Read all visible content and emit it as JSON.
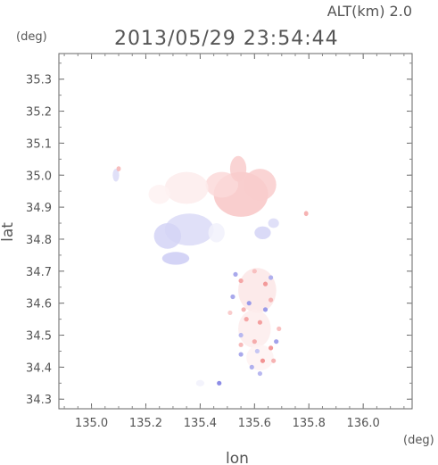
{
  "header": {
    "altitude_label": "ALT(km)  2.0",
    "timestamp": "2013/05/29 23:54:44"
  },
  "chart_data": {
    "type": "heatmap",
    "title": "2013/05/29 23:54:44",
    "xlabel": "lon",
    "ylabel": "lat",
    "xunit": "(deg)",
    "yunit": "(deg)",
    "xlim": [
      134.88,
      136.18
    ],
    "ylim": [
      34.27,
      35.38
    ],
    "x_ticks": [
      135.0,
      135.2,
      135.4,
      135.6,
      135.8,
      136.0
    ],
    "x_tick_labels": [
      "135.0",
      "135.2",
      "135.4",
      "135.6",
      "135.8",
      "136.0"
    ],
    "y_ticks": [
      34.3,
      34.4,
      34.5,
      34.6,
      34.7,
      34.8,
      34.9,
      35.0,
      35.1,
      35.2,
      35.3
    ],
    "y_tick_labels": [
      "34.3",
      "34.4",
      "34.5",
      "34.6",
      "34.7",
      "34.8",
      "34.9",
      "35.0",
      "35.1",
      "35.2",
      "35.3"
    ],
    "grid": false,
    "colors": {
      "positive": "#f08080",
      "negative": "#7070e0",
      "neutral": "#ffffff"
    },
    "regions": [
      {
        "lon": 135.55,
        "lat": 34.94,
        "rx": 0.1,
        "ry": 0.07,
        "value": 0.45
      },
      {
        "lon": 135.48,
        "lat": 34.97,
        "rx": 0.06,
        "ry": 0.04,
        "value": 0.3
      },
      {
        "lon": 135.62,
        "lat": 34.97,
        "rx": 0.06,
        "ry": 0.05,
        "value": 0.4
      },
      {
        "lon": 135.35,
        "lat": 34.96,
        "rx": 0.08,
        "ry": 0.05,
        "value": 0.15
      },
      {
        "lon": 135.25,
        "lat": 34.94,
        "rx": 0.04,
        "ry": 0.03,
        "value": 0.1
      },
      {
        "lon": 135.54,
        "lat": 35.02,
        "rx": 0.03,
        "ry": 0.04,
        "value": 0.4
      },
      {
        "lon": 135.36,
        "lat": 34.83,
        "rx": 0.09,
        "ry": 0.05,
        "value": -0.25
      },
      {
        "lon": 135.28,
        "lat": 34.81,
        "rx": 0.05,
        "ry": 0.04,
        "value": -0.3
      },
      {
        "lon": 135.31,
        "lat": 34.74,
        "rx": 0.05,
        "ry": 0.02,
        "value": -0.35
      },
      {
        "lon": 135.46,
        "lat": 34.82,
        "rx": 0.03,
        "ry": 0.03,
        "value": -0.1
      },
      {
        "lon": 135.09,
        "lat": 35.0,
        "rx": 0.012,
        "ry": 0.02,
        "value": -0.25
      },
      {
        "lon": 135.1,
        "lat": 35.02,
        "rx": 0.008,
        "ry": 0.008,
        "value": 0.6
      },
      {
        "lon": 135.79,
        "lat": 34.88,
        "rx": 0.008,
        "ry": 0.008,
        "value": 0.7
      },
      {
        "lon": 135.63,
        "lat": 34.82,
        "rx": 0.03,
        "ry": 0.02,
        "value": -0.3
      },
      {
        "lon": 135.67,
        "lat": 34.85,
        "rx": 0.02,
        "ry": 0.015,
        "value": -0.25
      },
      {
        "lon": 135.61,
        "lat": 34.64,
        "rx": 0.07,
        "ry": 0.07,
        "value": 0.2
      },
      {
        "lon": 135.6,
        "lat": 34.52,
        "rx": 0.06,
        "ry": 0.06,
        "value": 0.15
      },
      {
        "lon": 135.62,
        "lat": 34.43,
        "rx": 0.05,
        "ry": 0.04,
        "value": 0.1
      },
      {
        "lon": 135.4,
        "lat": 34.35,
        "rx": 0.015,
        "ry": 0.01,
        "value": -0.1
      }
    ],
    "points": [
      {
        "lon": 135.55,
        "lat": 34.67,
        "value": 0.7
      },
      {
        "lon": 135.58,
        "lat": 34.6,
        "value": -0.7
      },
      {
        "lon": 135.64,
        "lat": 34.66,
        "value": 0.8
      },
      {
        "lon": 135.66,
        "lat": 34.61,
        "value": 0.6
      },
      {
        "lon": 135.52,
        "lat": 34.62,
        "value": -0.6
      },
      {
        "lon": 135.57,
        "lat": 34.55,
        "value": 0.7
      },
      {
        "lon": 135.62,
        "lat": 34.54,
        "value": 0.75
      },
      {
        "lon": 135.55,
        "lat": 34.5,
        "value": -0.5
      },
      {
        "lon": 135.6,
        "lat": 34.48,
        "value": 0.65
      },
      {
        "lon": 135.66,
        "lat": 34.46,
        "value": 0.8
      },
      {
        "lon": 135.68,
        "lat": 34.48,
        "value": -0.65
      },
      {
        "lon": 135.63,
        "lat": 34.42,
        "value": 0.85
      },
      {
        "lon": 135.59,
        "lat": 34.4,
        "value": -0.55
      },
      {
        "lon": 135.55,
        "lat": 34.44,
        "value": -0.6
      },
      {
        "lon": 135.67,
        "lat": 34.42,
        "value": 0.6
      },
      {
        "lon": 135.61,
        "lat": 34.45,
        "value": -0.4
      },
      {
        "lon": 135.53,
        "lat": 34.69,
        "value": -0.6
      },
      {
        "lon": 135.6,
        "lat": 34.7,
        "value": 0.5
      },
      {
        "lon": 135.64,
        "lat": 34.58,
        "value": -0.7
      },
      {
        "lon": 135.56,
        "lat": 34.58,
        "value": 0.6
      },
      {
        "lon": 135.47,
        "lat": 34.35,
        "value": -0.8
      },
      {
        "lon": 135.69,
        "lat": 34.52,
        "value": 0.5
      },
      {
        "lon": 135.51,
        "lat": 34.57,
        "value": 0.4
      },
      {
        "lon": 135.62,
        "lat": 34.38,
        "value": -0.5
      },
      {
        "lon": 135.55,
        "lat": 34.47,
        "value": 0.55
      },
      {
        "lon": 135.66,
        "lat": 34.68,
        "value": -0.55
      }
    ]
  }
}
